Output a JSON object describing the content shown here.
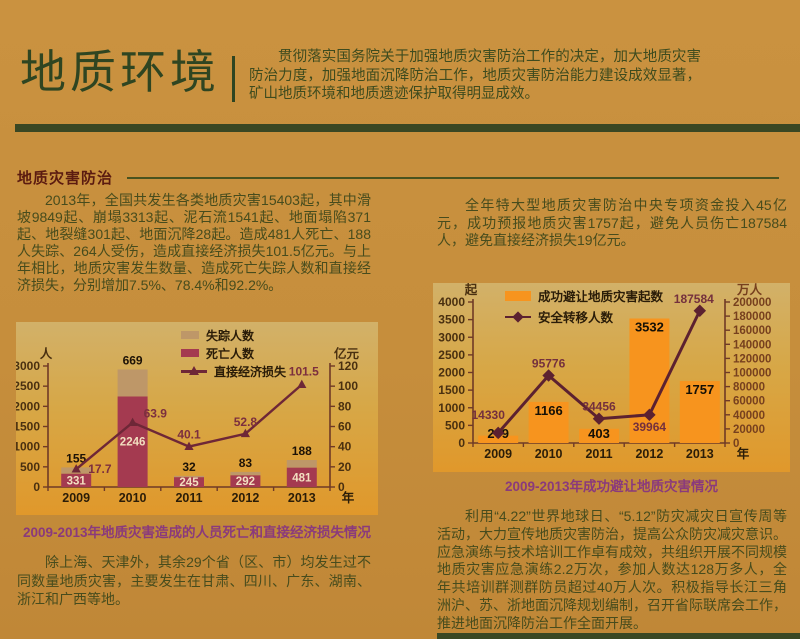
{
  "page": {
    "title": "地质环境",
    "intro": "贯彻落实国务院关于加强地质灾害防治工作的决定，加大地质灾害防治力度，加强地面沉降防治工作，地质灾害防治能力建设成效显著，矿山地质环境和地质遗迹保护取得明显成效。",
    "section_title": "地质灾害防治",
    "colors": {
      "background": "#C68E3C",
      "band": "#3A4723",
      "title_green": "#2F4521",
      "intro_text": "#3E4B1E",
      "body_text": "#474C1D",
      "section_red": "#5B1B10",
      "caption_purple": "#8A3A7C",
      "panel_top": "#D2B169",
      "panel_bottom": "#E0982B"
    }
  },
  "left_column": {
    "paragraph1": "2013年，全国共发生各类地质灾害15403起，其中滑坡9849起、崩塌3313起、泥石流1541起、地面塌陷371起、地裂缝301起、地面沉降28起。造成481人死亡、188人失踪、264人受伤，造成直接经济损失101.5亿元。与上年相比，地质灾害发生数量、造成死亡失踪人数和直接经济损失，分别增加7.5%、78.4%和92.2%。",
    "paragraph2": "除上海、天津外，其余29个省（区、市）均发生过不同数量地质灾害，主要发生在甘肃、四川、广东、湖南、浙江和广西等地。"
  },
  "right_column": {
    "paragraph1": "全年特大型地质灾害防治中央专项资金投入45亿元，成功预报地质灾害1757起，避免人员伤亡187584人，避免直接经济损失19亿元。",
    "paragraph2": "利用“4.22”世界地球日、“5.12”防灾减灾日宣传周等活动，大力宣传地质灾害防治，提高公众防灾减灾意识。应急演练与技术培训工作卓有成效，共组织开展不同规模地质灾害应急演练2.2万次，参加人数达128万多人，全年共培训群测群防员超过40万人次。积极指导长江三角洲沪、苏、浙地面沉降规划编制，召开省际联席会工作，推进地面沉降防治工作全面开展。"
  },
  "chart_data": [
    {
      "type": "bar",
      "caption": "2009-2013年地质灾害造成的人员死亡和直接经济损失情况",
      "categories": [
        "2009",
        "2010",
        "2011",
        "2012",
        "2013"
      ],
      "series": [
        {
          "name": "死亡人数",
          "type": "bar",
          "stack": true,
          "axis": "left",
          "color": "#A43A50",
          "values": [
            331,
            2246,
            245,
            292,
            481
          ]
        },
        {
          "name": "失踪人数",
          "type": "bar",
          "stack": true,
          "axis": "left",
          "color": "#BE9768",
          "values": [
            155,
            669,
            32,
            83,
            188
          ]
        },
        {
          "name": "直接经济损失",
          "type": "line",
          "axis": "right",
          "color": "#6E2737",
          "marker": "triangle",
          "values": [
            17.7,
            63.9,
            40.1,
            52.8,
            101.5
          ]
        }
      ],
      "left_axis": {
        "label": "人",
        "min": 0,
        "max": 3000,
        "step": 500
      },
      "right_axis": {
        "label": "亿元",
        "min": 0,
        "max": 120,
        "step": 20
      },
      "x_axis_label": "年",
      "grid": false,
      "legend_position": "top-right"
    },
    {
      "type": "bar",
      "caption": "2009-2013年成功避让地质灾害情况",
      "categories": [
        "2009",
        "2010",
        "2011",
        "2012",
        "2013"
      ],
      "series": [
        {
          "name": "成功避让地质灾害起数",
          "type": "bar",
          "axis": "left",
          "color": "#F7941E",
          "values": [
            209,
            1166,
            403,
            3532,
            1757
          ]
        },
        {
          "name": "安全转移人数",
          "type": "line",
          "axis": "right",
          "color": "#5C2130",
          "marker": "diamond",
          "values": [
            14330,
            95776,
            34456,
            39964,
            187584
          ]
        }
      ],
      "left_axis": {
        "label": "起",
        "min": 0,
        "max": 4000,
        "step": 500
      },
      "right_axis": {
        "label": "万人",
        "min": 0,
        "max": 200000,
        "step": 20000
      },
      "x_axis_label": "年",
      "grid": false,
      "legend_position": "top"
    }
  ]
}
